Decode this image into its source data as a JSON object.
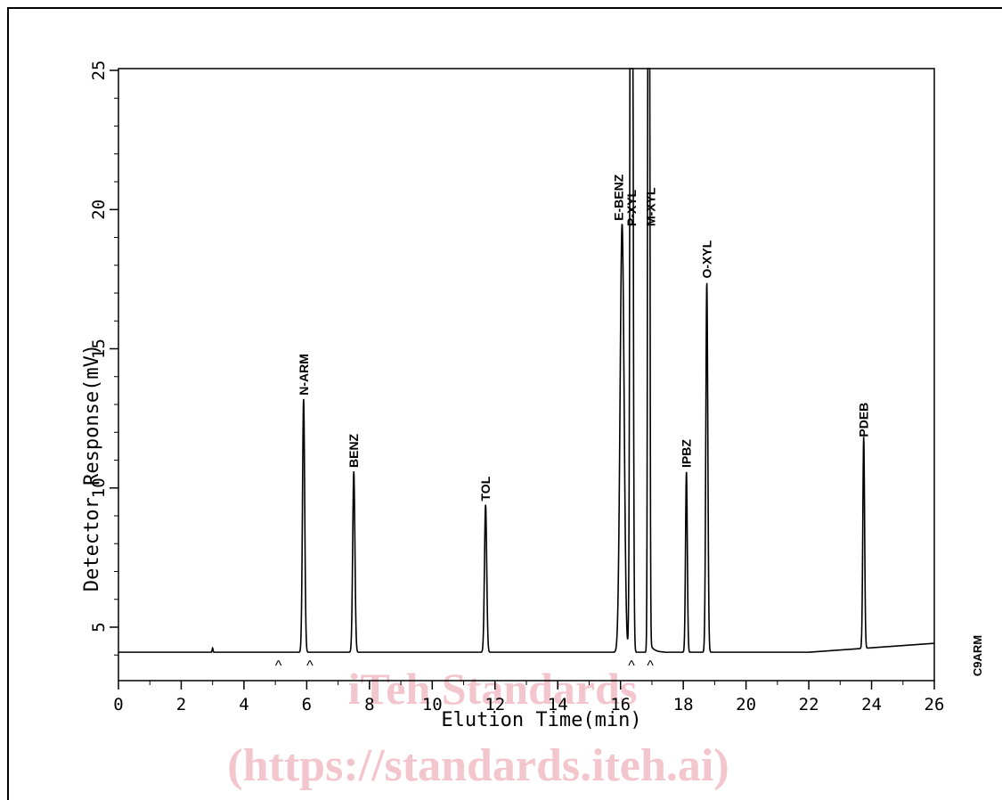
{
  "chart_data": {
    "type": "line",
    "xlabel": "Elution Time(min)",
    "ylabel": "Detector Response(mV)",
    "xlim": [
      0,
      26
    ],
    "ylim": [
      3,
      25
    ],
    "x_ticks": [
      0,
      2,
      4,
      6,
      8,
      10,
      12,
      14,
      16,
      18,
      20,
      22,
      24,
      26
    ],
    "y_ticks": [
      5,
      10,
      15,
      20,
      25
    ],
    "baseline": 4.1,
    "series": [
      {
        "peaks": [
          {
            "label": "N-ARM",
            "x": 5.9,
            "y": 13.2
          },
          {
            "label": "BENZ",
            "x": 7.5,
            "y": 10.6
          },
          {
            "label": "TOL",
            "x": 11.7,
            "y": 9.4
          },
          {
            "label": "E-BENZ",
            "x": 16.05,
            "y": 19.5
          },
          {
            "label": "P-XYL",
            "x": 16.35,
            "y": 25
          },
          {
            "label": "M-XYL",
            "x": 16.9,
            "y": 25
          },
          {
            "label": "IPBZ",
            "x": 18.1,
            "y": 10.6
          },
          {
            "label": "O-XYL",
            "x": 18.75,
            "y": 17.4
          },
          {
            "label": "PDEB",
            "x": 23.75,
            "y": 11.7
          }
        ]
      }
    ],
    "integration_markers": [
      {
        "label": "^",
        "x": 5.1
      },
      {
        "label": "^",
        "x": 6.1
      },
      {
        "label": "^",
        "x": 16.35
      },
      {
        "label": "^",
        "x": 16.95
      }
    ],
    "side_label": "C9ARM"
  },
  "watermark": {
    "line1": "iTeh Standards",
    "line2": "(https://standards.iteh.ai)"
  }
}
